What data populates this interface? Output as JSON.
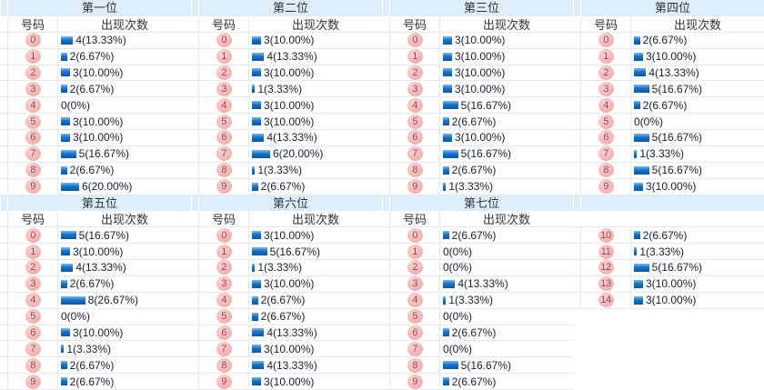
{
  "columns": {
    "number": "号码",
    "count": "出现次数"
  },
  "colors": {
    "header_bg": "#ddeefa",
    "row_border": "#e2e9ef",
    "bar_top": "#7db9ea",
    "bar_bottom": "#0b57a2",
    "badge_bg": "#f7b6b6",
    "badge_text": "#8f4a4a",
    "value_text": "#16202e"
  },
  "blocks": [
    {
      "title": "第一位",
      "rows": [
        {
          "num": "0",
          "label": "4(13.33%)",
          "pct": 13.33
        },
        {
          "num": "1",
          "label": "2(6.67%)",
          "pct": 6.67
        },
        {
          "num": "2",
          "label": "3(10.00%)",
          "pct": 10.0
        },
        {
          "num": "3",
          "label": "2(6.67%)",
          "pct": 6.67
        },
        {
          "num": "4",
          "label": "0(0%)",
          "pct": 0
        },
        {
          "num": "5",
          "label": "3(10.00%)",
          "pct": 10.0
        },
        {
          "num": "6",
          "label": "3(10.00%)",
          "pct": 10.0
        },
        {
          "num": "7",
          "label": "5(16.67%)",
          "pct": 16.67
        },
        {
          "num": "8",
          "label": "2(6.67%)",
          "pct": 6.67
        },
        {
          "num": "9",
          "label": "6(20.00%)",
          "pct": 20.0
        }
      ]
    },
    {
      "title": "第二位",
      "rows": [
        {
          "num": "0",
          "label": "3(10.00%)",
          "pct": 10.0
        },
        {
          "num": "1",
          "label": "4(13.33%)",
          "pct": 13.33
        },
        {
          "num": "2",
          "label": "3(10.00%)",
          "pct": 10.0
        },
        {
          "num": "3",
          "label": "1(3.33%)",
          "pct": 3.33
        },
        {
          "num": "4",
          "label": "3(10.00%)",
          "pct": 10.0
        },
        {
          "num": "5",
          "label": "3(10.00%)",
          "pct": 10.0
        },
        {
          "num": "6",
          "label": "4(13.33%)",
          "pct": 13.33
        },
        {
          "num": "7",
          "label": "6(20.00%)",
          "pct": 20.0
        },
        {
          "num": "8",
          "label": "1(3.33%)",
          "pct": 3.33
        },
        {
          "num": "9",
          "label": "2(6.67%)",
          "pct": 6.67
        }
      ]
    },
    {
      "title": "第三位",
      "rows": [
        {
          "num": "0",
          "label": "3(10.00%)",
          "pct": 10.0
        },
        {
          "num": "1",
          "label": "3(10.00%)",
          "pct": 10.0
        },
        {
          "num": "2",
          "label": "3(10.00%)",
          "pct": 10.0
        },
        {
          "num": "3",
          "label": "3(10.00%)",
          "pct": 10.0
        },
        {
          "num": "4",
          "label": "5(16.67%)",
          "pct": 16.67
        },
        {
          "num": "5",
          "label": "2(6.67%)",
          "pct": 6.67
        },
        {
          "num": "6",
          "label": "3(10.00%)",
          "pct": 10.0
        },
        {
          "num": "7",
          "label": "5(16.67%)",
          "pct": 16.67
        },
        {
          "num": "8",
          "label": "2(6.67%)",
          "pct": 6.67
        },
        {
          "num": "9",
          "label": "1(3.33%)",
          "pct": 3.33
        }
      ]
    },
    {
      "title": "第四位",
      "rows": [
        {
          "num": "0",
          "label": "2(6.67%)",
          "pct": 6.67
        },
        {
          "num": "1",
          "label": "3(10.00%)",
          "pct": 10.0
        },
        {
          "num": "2",
          "label": "4(13.33%)",
          "pct": 13.33
        },
        {
          "num": "3",
          "label": "5(16.67%)",
          "pct": 16.67
        },
        {
          "num": "4",
          "label": "2(6.67%)",
          "pct": 6.67
        },
        {
          "num": "5",
          "label": "0(0%)",
          "pct": 0
        },
        {
          "num": "6",
          "label": "5(16.67%)",
          "pct": 16.67
        },
        {
          "num": "7",
          "label": "1(3.33%)",
          "pct": 3.33
        },
        {
          "num": "8",
          "label": "5(16.67%)",
          "pct": 16.67
        },
        {
          "num": "9",
          "label": "3(10.00%)",
          "pct": 10.0
        }
      ]
    },
    {
      "title": "第五位",
      "rows": [
        {
          "num": "0",
          "label": "5(16.67%)",
          "pct": 16.67
        },
        {
          "num": "1",
          "label": "3(10.00%)",
          "pct": 10.0
        },
        {
          "num": "2",
          "label": "4(13.33%)",
          "pct": 13.33
        },
        {
          "num": "3",
          "label": "2(6.67%)",
          "pct": 6.67
        },
        {
          "num": "4",
          "label": "8(26.67%)",
          "pct": 26.67
        },
        {
          "num": "5",
          "label": "0(0%)",
          "pct": 0
        },
        {
          "num": "6",
          "label": "3(10.00%)",
          "pct": 10.0
        },
        {
          "num": "7",
          "label": "1(3.33%)",
          "pct": 3.33
        },
        {
          "num": "8",
          "label": "2(6.67%)",
          "pct": 6.67
        },
        {
          "num": "9",
          "label": "2(6.67%)",
          "pct": 6.67
        }
      ]
    },
    {
      "title": "第六位",
      "rows": [
        {
          "num": "0",
          "label": "3(10.00%)",
          "pct": 10.0
        },
        {
          "num": "1",
          "label": "5(16.67%)",
          "pct": 16.67
        },
        {
          "num": "2",
          "label": "1(3.33%)",
          "pct": 3.33
        },
        {
          "num": "3",
          "label": "3(10.00%)",
          "pct": 10.0
        },
        {
          "num": "4",
          "label": "2(6.67%)",
          "pct": 6.67
        },
        {
          "num": "5",
          "label": "2(6.67%)",
          "pct": 6.67
        },
        {
          "num": "6",
          "label": "4(13.33%)",
          "pct": 13.33
        },
        {
          "num": "7",
          "label": "3(10.00%)",
          "pct": 10.0
        },
        {
          "num": "8",
          "label": "4(13.33%)",
          "pct": 13.33
        },
        {
          "num": "9",
          "label": "3(10.00%)",
          "pct": 10.0
        }
      ]
    },
    {
      "title": "第七位",
      "rows": [
        {
          "num": "0",
          "label": "2(6.67%)",
          "pct": 6.67
        },
        {
          "num": "1",
          "label": "0(0%)",
          "pct": 0
        },
        {
          "num": "2",
          "label": "0(0%)",
          "pct": 0
        },
        {
          "num": "3",
          "label": "4(13.33%)",
          "pct": 13.33
        },
        {
          "num": "4",
          "label": "1(3.33%)",
          "pct": 3.33
        },
        {
          "num": "5",
          "label": "0(0%)",
          "pct": 0
        },
        {
          "num": "6",
          "label": "2(6.67%)",
          "pct": 6.67
        },
        {
          "num": "7",
          "label": "0(0%)",
          "pct": 0
        },
        {
          "num": "8",
          "label": "5(16.67%)",
          "pct": 16.67
        },
        {
          "num": "9",
          "label": "2(6.67%)",
          "pct": 6.67
        }
      ]
    },
    {
      "title": "",
      "bare": true,
      "empty_rows": 5,
      "rows": [
        {
          "num": "10",
          "label": "2(6.67%)",
          "pct": 6.67
        },
        {
          "num": "11",
          "label": "1(3.33%)",
          "pct": 3.33
        },
        {
          "num": "12",
          "label": "5(16.67%)",
          "pct": 16.67
        },
        {
          "num": "13",
          "label": "3(10.00%)",
          "pct": 10.0
        },
        {
          "num": "14",
          "label": "3(10.00%)",
          "pct": 10.0
        }
      ]
    }
  ],
  "chart_data": {
    "type": "bar",
    "title": "号码出现次数 (digit frequency by position)",
    "legend_position": "none",
    "grid": false,
    "categories": [
      0,
      1,
      2,
      3,
      4,
      5,
      6,
      7,
      8,
      9
    ],
    "series": [
      {
        "name": "第一位",
        "values": [
          4,
          2,
          3,
          2,
          0,
          3,
          3,
          5,
          2,
          6
        ],
        "percents": [
          13.33,
          6.67,
          10.0,
          6.67,
          0,
          10.0,
          10.0,
          16.67,
          6.67,
          20.0
        ]
      },
      {
        "name": "第二位",
        "values": [
          3,
          4,
          3,
          1,
          3,
          3,
          4,
          6,
          1,
          2
        ],
        "percents": [
          10.0,
          13.33,
          10.0,
          3.33,
          10.0,
          10.0,
          13.33,
          20.0,
          3.33,
          6.67
        ]
      },
      {
        "name": "第三位",
        "values": [
          3,
          3,
          3,
          3,
          5,
          2,
          3,
          5,
          2,
          1
        ],
        "percents": [
          10.0,
          10.0,
          10.0,
          10.0,
          16.67,
          6.67,
          10.0,
          16.67,
          6.67,
          3.33
        ]
      },
      {
        "name": "第四位",
        "values": [
          2,
          3,
          4,
          5,
          2,
          0,
          5,
          1,
          5,
          3
        ],
        "percents": [
          6.67,
          10.0,
          13.33,
          16.67,
          6.67,
          0,
          16.67,
          3.33,
          16.67,
          10.0
        ]
      },
      {
        "name": "第五位",
        "values": [
          5,
          3,
          4,
          2,
          8,
          0,
          3,
          1,
          2,
          2
        ],
        "percents": [
          16.67,
          10.0,
          13.33,
          6.67,
          26.67,
          0,
          10.0,
          3.33,
          6.67,
          6.67
        ]
      },
      {
        "name": "第六位",
        "values": [
          3,
          5,
          1,
          3,
          2,
          2,
          4,
          3,
          4,
          3
        ],
        "percents": [
          10.0,
          16.67,
          3.33,
          10.0,
          6.67,
          6.67,
          13.33,
          10.0,
          13.33,
          10.0
        ]
      },
      {
        "name": "第七位",
        "values": [
          2,
          0,
          0,
          4,
          1,
          0,
          2,
          0,
          5,
          2
        ],
        "percents": [
          6.67,
          0,
          0,
          13.33,
          3.33,
          0,
          6.67,
          0,
          16.67,
          6.67
        ]
      },
      {
        "name": "",
        "categories": [
          10,
          11,
          12,
          13,
          14
        ],
        "values": [
          2,
          1,
          5,
          3,
          3
        ],
        "percents": [
          6.67,
          3.33,
          16.67,
          10.0,
          10.0
        ]
      }
    ]
  }
}
